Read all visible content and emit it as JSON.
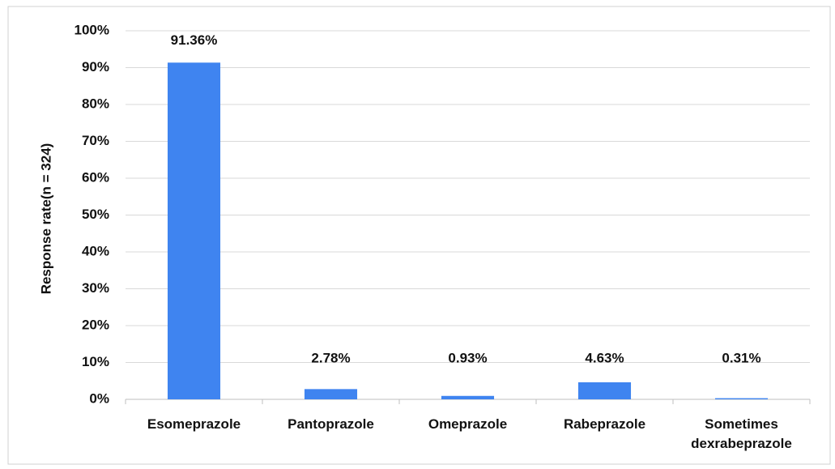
{
  "chart_data": {
    "type": "bar",
    "y_label": "Response rate(n = 324)",
    "categories": [
      "Esomeprazole",
      "Pantoprazole",
      "Omeprazole",
      "Rabeprazole",
      "Sometimes dexrabeprazole"
    ],
    "values": [
      91.36,
      2.78,
      0.93,
      4.63,
      0.31
    ],
    "value_labels": [
      "91.36%",
      "2.78%",
      "0.93%",
      "4.63%",
      "0.31%"
    ],
    "color": "#3f84f0",
    "ylim": [
      0,
      100
    ],
    "yticks": [
      {
        "value": 0,
        "label": "0%"
      },
      {
        "value": 10,
        "label": "10%"
      },
      {
        "value": 20,
        "label": "20%"
      },
      {
        "value": 30,
        "label": "30%"
      },
      {
        "value": 40,
        "label": "40%"
      },
      {
        "value": 50,
        "label": "50%"
      },
      {
        "value": 60,
        "label": "60%"
      },
      {
        "value": 70,
        "label": "70%"
      },
      {
        "value": 80,
        "label": "80%"
      },
      {
        "value": 90,
        "label": "90%"
      },
      {
        "value": 100,
        "label": "100%"
      }
    ],
    "grid": true
  }
}
